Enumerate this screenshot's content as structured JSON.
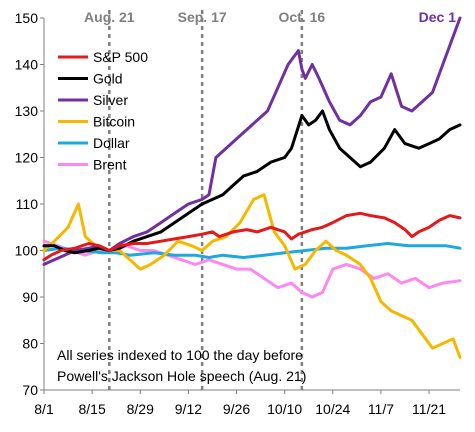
{
  "chart_data": {
    "type": "line",
    "ylim": [
      70,
      150
    ],
    "yticks": [
      70,
      80,
      90,
      100,
      110,
      120,
      130,
      140,
      150
    ],
    "x_start": "8/1",
    "x_end": "11/30",
    "xticks": [
      "8/1",
      "8/15",
      "8/29",
      "9/12",
      "9/26",
      "10/10",
      "10/24",
      "11/7",
      "11/21"
    ],
    "grid": false,
    "legend_position": "top-left",
    "events": [
      {
        "label": "Aug. 21",
        "date": "8/20",
        "color": "#7f7f7f"
      },
      {
        "label": "Sep. 17",
        "date": "9/16",
        "color": "#7f7f7f"
      },
      {
        "label": "Oct. 16",
        "date": "10/15",
        "color": "#7f7f7f"
      },
      {
        "label": "Dec 1",
        "date": "11/30",
        "color": "#7030a0"
      }
    ],
    "annotation": [
      "All series indexed to 100 the day before",
      "Powell's Jackson Hole speech (Aug. 21)"
    ],
    "series": [
      {
        "name": "S&P 500",
        "color": "#e31a1c",
        "width": 3,
        "points": [
          [
            "8/1",
            98
          ],
          [
            "8/3",
            99
          ],
          [
            "8/6",
            100
          ],
          [
            "8/10",
            100.5
          ],
          [
            "8/14",
            101.5
          ],
          [
            "8/17",
            101
          ],
          [
            "8/20",
            100
          ],
          [
            "8/23",
            101
          ],
          [
            "8/27",
            101.5
          ],
          [
            "8/31",
            101.5
          ],
          [
            "9/4",
            102
          ],
          [
            "9/8",
            102.5
          ],
          [
            "9/12",
            103
          ],
          [
            "9/16",
            103.5
          ],
          [
            "9/19",
            104
          ],
          [
            "9/21",
            103
          ],
          [
            "9/25",
            104
          ],
          [
            "9/29",
            104.5
          ],
          [
            "10/2",
            104
          ],
          [
            "10/6",
            105
          ],
          [
            "10/10",
            104
          ],
          [
            "10/12",
            102.5
          ],
          [
            "10/14",
            103.5
          ],
          [
            "10/16",
            104
          ],
          [
            "10/18",
            104.5
          ],
          [
            "10/21",
            105
          ],
          [
            "10/24",
            106
          ],
          [
            "10/28",
            107.5
          ],
          [
            "11/1",
            108
          ],
          [
            "11/4",
            107.5
          ],
          [
            "11/8",
            107
          ],
          [
            "11/11",
            106
          ],
          [
            "11/14",
            104.5
          ],
          [
            "11/16",
            103
          ],
          [
            "11/18",
            104
          ],
          [
            "11/21",
            105
          ],
          [
            "11/24",
            106.5
          ],
          [
            "11/27",
            107.5
          ],
          [
            "11/30",
            107
          ]
        ]
      },
      {
        "name": "Gold",
        "color": "#000000",
        "width": 3,
        "points": [
          [
            "8/1",
            101
          ],
          [
            "8/4",
            101
          ],
          [
            "8/7",
            100
          ],
          [
            "8/10",
            99.5
          ],
          [
            "8/14",
            100
          ],
          [
            "8/17",
            100.5
          ],
          [
            "8/20",
            100
          ],
          [
            "8/23",
            100.5
          ],
          [
            "8/27",
            102
          ],
          [
            "8/31",
            103
          ],
          [
            "9/4",
            104
          ],
          [
            "9/8",
            106
          ],
          [
            "9/12",
            108
          ],
          [
            "9/16",
            110
          ],
          [
            "9/19",
            111
          ],
          [
            "9/22",
            112
          ],
          [
            "9/25",
            114
          ],
          [
            "9/28",
            116
          ],
          [
            "10/2",
            117
          ],
          [
            "10/6",
            119
          ],
          [
            "10/10",
            120
          ],
          [
            "10/12",
            122
          ],
          [
            "10/15",
            129
          ],
          [
            "10/17",
            127
          ],
          [
            "10/19",
            128
          ],
          [
            "10/21",
            130
          ],
          [
            "10/23",
            126
          ],
          [
            "10/26",
            122
          ],
          [
            "10/29",
            120
          ],
          [
            "11/1",
            118
          ],
          [
            "11/4",
            119
          ],
          [
            "11/8",
            122
          ],
          [
            "11/11",
            126
          ],
          [
            "11/14",
            123
          ],
          [
            "11/18",
            122
          ],
          [
            "11/21",
            123
          ],
          [
            "11/24",
            124
          ],
          [
            "11/27",
            126
          ],
          [
            "11/30",
            127
          ]
        ]
      },
      {
        "name": "Silver",
        "color": "#7030a0",
        "width": 3,
        "points": [
          [
            "8/1",
            97
          ],
          [
            "8/4",
            98
          ],
          [
            "8/7",
            99
          ],
          [
            "8/10",
            100
          ],
          [
            "8/14",
            100.5
          ],
          [
            "8/17",
            101
          ],
          [
            "8/20",
            100
          ],
          [
            "8/23",
            101.5
          ],
          [
            "8/27",
            103
          ],
          [
            "8/31",
            104
          ],
          [
            "9/4",
            106
          ],
          [
            "9/8",
            108
          ],
          [
            "9/12",
            110
          ],
          [
            "9/16",
            111
          ],
          [
            "9/18",
            112
          ],
          [
            "9/20",
            120
          ],
          [
            "9/23",
            122
          ],
          [
            "9/26",
            124
          ],
          [
            "9/29",
            126
          ],
          [
            "10/2",
            128
          ],
          [
            "10/5",
            130
          ],
          [
            "10/8",
            135
          ],
          [
            "10/11",
            140
          ],
          [
            "10/14",
            143
          ],
          [
            "10/15",
            139
          ],
          [
            "10/16",
            137
          ],
          [
            "10/18",
            140
          ],
          [
            "10/20",
            137
          ],
          [
            "10/23",
            132
          ],
          [
            "10/26",
            128
          ],
          [
            "10/29",
            127
          ],
          [
            "11/1",
            129
          ],
          [
            "11/4",
            132
          ],
          [
            "11/7",
            133
          ],
          [
            "11/10",
            138
          ],
          [
            "11/13",
            131
          ],
          [
            "11/16",
            130
          ],
          [
            "11/19",
            132
          ],
          [
            "11/22",
            134
          ],
          [
            "11/25",
            140
          ],
          [
            "11/28",
            146
          ],
          [
            "11/30",
            150
          ]
        ]
      },
      {
        "name": "Bitcoin",
        "color": "#f5b800",
        "width": 3,
        "points": [
          [
            "8/1",
            100
          ],
          [
            "8/4",
            102
          ],
          [
            "8/8",
            105
          ],
          [
            "8/11",
            110
          ],
          [
            "8/13",
            103
          ],
          [
            "8/16",
            101
          ],
          [
            "8/20",
            100
          ],
          [
            "8/23",
            100
          ],
          [
            "8/26",
            98
          ],
          [
            "8/29",
            96
          ],
          [
            "9/1",
            97
          ],
          [
            "9/5",
            99
          ],
          [
            "9/9",
            102
          ],
          [
            "9/13",
            101
          ],
          [
            "9/16",
            100
          ],
          [
            "9/19",
            102
          ],
          [
            "9/23",
            103
          ],
          [
            "9/27",
            106
          ],
          [
            "10/1",
            111
          ],
          [
            "10/4",
            112
          ],
          [
            "10/7",
            104
          ],
          [
            "10/10",
            101
          ],
          [
            "10/13",
            96
          ],
          [
            "10/16",
            97
          ],
          [
            "10/19",
            100
          ],
          [
            "10/22",
            102
          ],
          [
            "10/25",
            100
          ],
          [
            "10/28",
            99
          ],
          [
            "11/1",
            97
          ],
          [
            "11/4",
            94
          ],
          [
            "11/7",
            89
          ],
          [
            "11/10",
            87
          ],
          [
            "11/13",
            86
          ],
          [
            "11/16",
            85
          ],
          [
            "11/19",
            82
          ],
          [
            "11/22",
            79
          ],
          [
            "11/25",
            80
          ],
          [
            "11/28",
            81
          ],
          [
            "11/30",
            77
          ]
        ]
      },
      {
        "name": "Dollar",
        "color": "#1ea8e0",
        "width": 3,
        "points": [
          [
            "8/1",
            100
          ],
          [
            "8/6",
            100.5
          ],
          [
            "8/12",
            100
          ],
          [
            "8/18",
            99.5
          ],
          [
            "8/22",
            99.5
          ],
          [
            "8/26",
            99
          ],
          [
            "9/2",
            99.5
          ],
          [
            "9/8",
            99
          ],
          [
            "9/14",
            99
          ],
          [
            "9/18",
            98.5
          ],
          [
            "9/22",
            99
          ],
          [
            "9/28",
            98.5
          ],
          [
            "10/4",
            99
          ],
          [
            "10/10",
            99.5
          ],
          [
            "10/16",
            100
          ],
          [
            "10/22",
            100.5
          ],
          [
            "10/28",
            100.5
          ],
          [
            "11/3",
            101
          ],
          [
            "11/9",
            101.5
          ],
          [
            "11/15",
            101
          ],
          [
            "11/21",
            101
          ],
          [
            "11/26",
            101
          ],
          [
            "11/30",
            100.5
          ]
        ]
      },
      {
        "name": "Brent",
        "color": "#ff88f0",
        "width": 3,
        "points": [
          [
            "8/1",
            102
          ],
          [
            "8/5",
            101
          ],
          [
            "8/9",
            100
          ],
          [
            "8/13",
            99
          ],
          [
            "8/17",
            100
          ],
          [
            "8/21",
            100
          ],
          [
            "8/25",
            101
          ],
          [
            "8/29",
            100
          ],
          [
            "9/2",
            100
          ],
          [
            "9/6",
            99
          ],
          [
            "9/10",
            98
          ],
          [
            "9/14",
            97
          ],
          [
            "9/18",
            98
          ],
          [
            "9/22",
            97
          ],
          [
            "9/26",
            96
          ],
          [
            "9/30",
            96
          ],
          [
            "10/4",
            94
          ],
          [
            "10/8",
            92
          ],
          [
            "10/12",
            93
          ],
          [
            "10/15",
            91
          ],
          [
            "10/18",
            90
          ],
          [
            "10/21",
            91
          ],
          [
            "10/24",
            96
          ],
          [
            "10/28",
            97
          ],
          [
            "11/1",
            96
          ],
          [
            "11/5",
            94
          ],
          [
            "11/9",
            95
          ],
          [
            "11/13",
            93
          ],
          [
            "11/17",
            94
          ],
          [
            "11/21",
            92
          ],
          [
            "11/25",
            93
          ],
          [
            "11/30",
            93.5
          ]
        ]
      }
    ]
  }
}
